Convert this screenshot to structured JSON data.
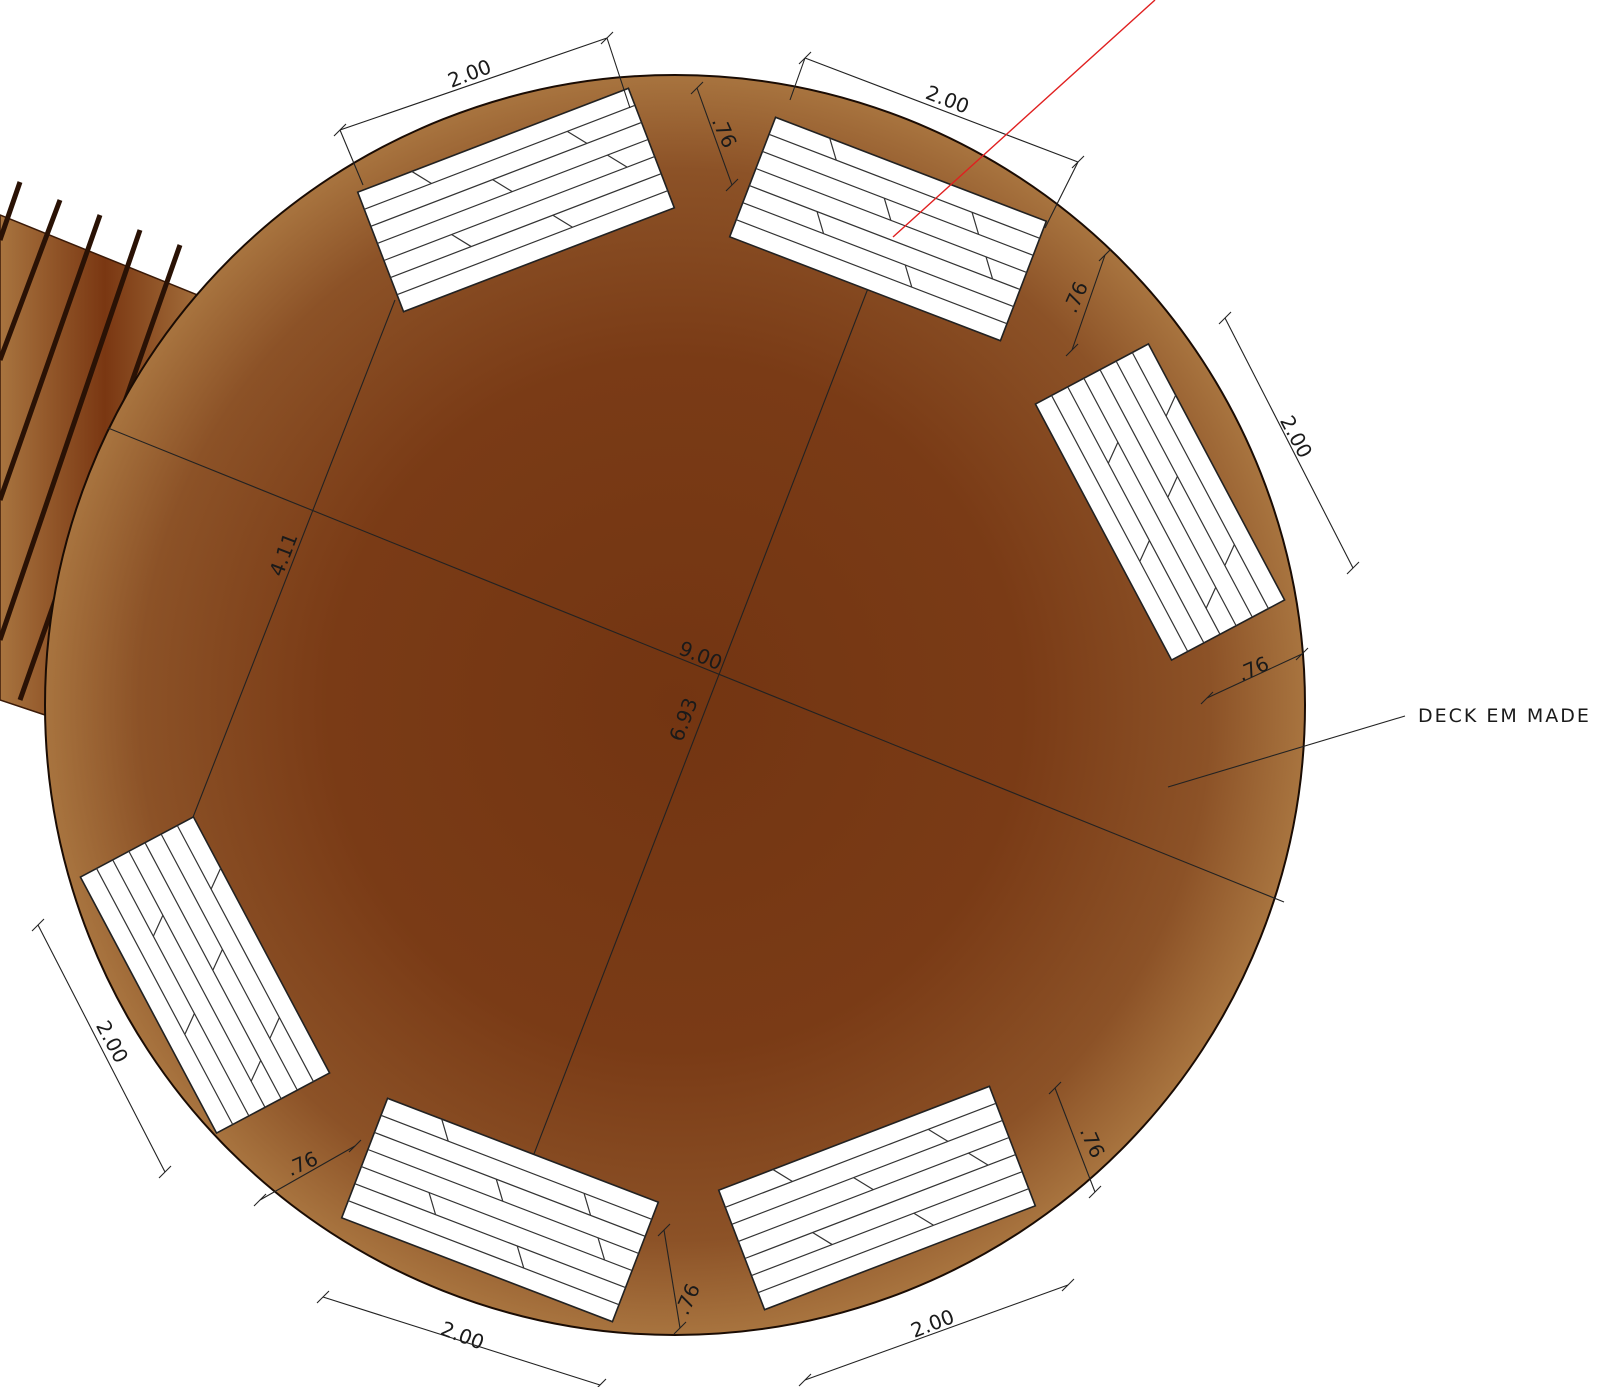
{
  "colors": {
    "deck_dark": "#733512",
    "deck_light": "#a8743f",
    "bench": "#ffffff",
    "leader_red": "#e02020",
    "ink": "#1a1a1a"
  },
  "dimensions": {
    "diameter": "9.00",
    "chord_inner": "6.93",
    "chord_offset": "4.11",
    "bench_length": "2.00",
    "bench_width": ".76"
  },
  "annotation": {
    "deck_label": "DECK EM MADE"
  }
}
